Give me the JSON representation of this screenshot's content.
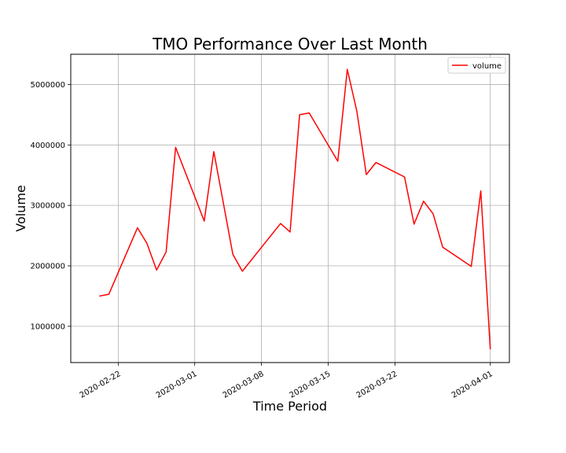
{
  "chart_data": {
    "type": "line",
    "title": "TMO Performance Over Last Month",
    "xlabel": "Time Period",
    "ylabel": "Volume",
    "x_ticks": [
      "2020-02-22",
      "2020-03-01",
      "2020-03-08",
      "2020-03-15",
      "2020-03-22",
      "2020-04-01"
    ],
    "y_ticks": [
      1000000,
      2000000,
      3000000,
      4000000,
      5000000
    ],
    "y_tick_labels": [
      "1000000",
      "2000000",
      "3000000",
      "4000000",
      "5000000"
    ],
    "xlim": [
      "2020-02-17",
      "2020-04-03"
    ],
    "ylim": [
      400000,
      5500000
    ],
    "grid": true,
    "legend_position": "top-right",
    "colors": {
      "volume": "#ff0000",
      "grid": "#b0b0b0",
      "axes": "#000000"
    },
    "series": [
      {
        "name": "volume",
        "color": "#ff0000",
        "x": [
          "2020-02-20",
          "2020-02-21",
          "2020-02-24",
          "2020-02-25",
          "2020-02-26",
          "2020-02-27",
          "2020-02-28",
          "2020-03-02",
          "2020-03-03",
          "2020-03-05",
          "2020-03-06",
          "2020-03-10",
          "2020-03-11",
          "2020-03-12",
          "2020-03-13",
          "2020-03-16",
          "2020-03-17",
          "2020-03-18",
          "2020-03-19",
          "2020-03-20",
          "2020-03-23",
          "2020-03-24",
          "2020-03-25",
          "2020-03-26",
          "2020-03-27",
          "2020-03-30",
          "2020-03-31",
          "2020-04-01"
        ],
        "values": [
          1500000,
          1530000,
          2630000,
          2370000,
          1930000,
          2230000,
          3960000,
          2740000,
          3890000,
          2190000,
          1910000,
          2700000,
          2560000,
          4500000,
          4530000,
          3730000,
          5250000,
          4560000,
          3510000,
          3710000,
          3470000,
          2690000,
          3070000,
          2860000,
          2310000,
          1990000,
          3240000,
          620000
        ]
      }
    ]
  }
}
